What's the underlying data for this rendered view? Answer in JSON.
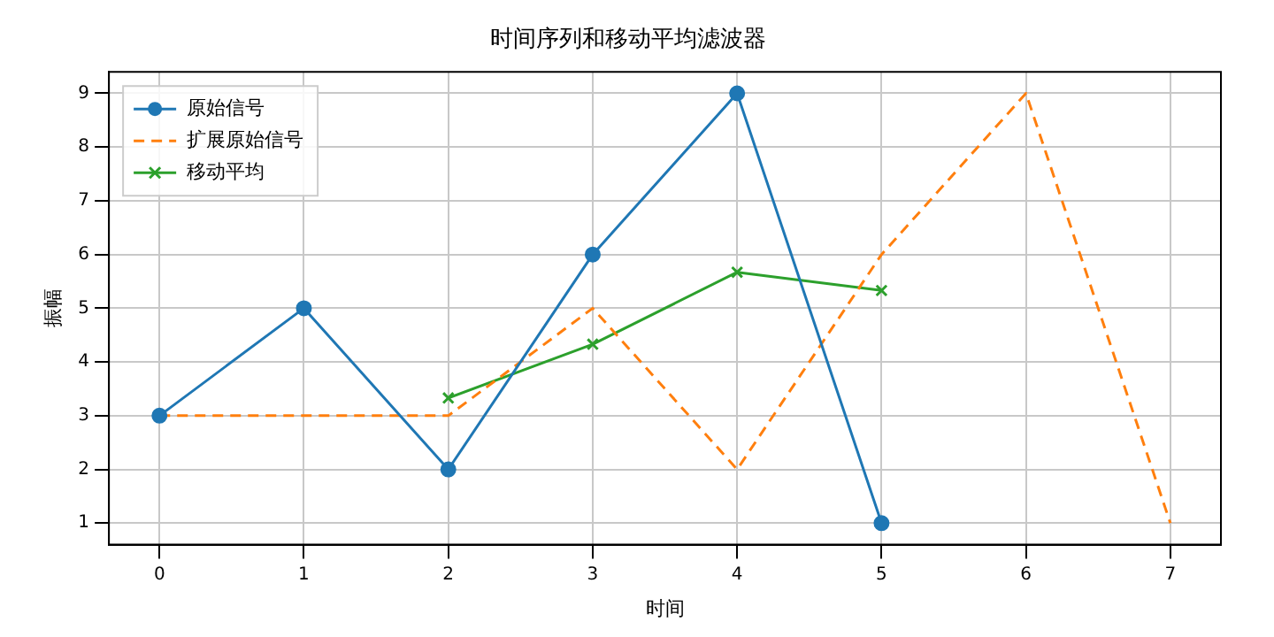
{
  "chart_data": {
    "type": "line",
    "title": "时间序列和移动平均滤波器",
    "xlabel": "时间",
    "ylabel": "振幅",
    "xlim": [
      -0.35,
      7.35
    ],
    "xticks": [
      0,
      1,
      2,
      3,
      4,
      5,
      6,
      7
    ],
    "ylim": [
      0.6,
      9.4
    ],
    "yticks": [
      1,
      2,
      3,
      4,
      5,
      6,
      7,
      8,
      9
    ],
    "grid": true,
    "legend": "top left",
    "series": [
      {
        "name": "原始信号",
        "color": "#1f77b4",
        "x": [
          0,
          1,
          2,
          3,
          4,
          5
        ],
        "values": [
          3,
          5,
          2,
          6,
          9,
          1
        ],
        "marker": "circle",
        "line_style": "solid"
      },
      {
        "name": "扩展原始信号",
        "color": "#ff7f0e",
        "x": [
          0,
          1,
          2,
          3,
          4,
          5,
          6,
          7
        ],
        "values": [
          3,
          3,
          3,
          5,
          2,
          6,
          9,
          1
        ],
        "marker": "none",
        "line_style": "dashed"
      },
      {
        "name": "移动平均",
        "color": "#2ca02c",
        "x": [
          2,
          3,
          4,
          5
        ],
        "values": [
          3.33,
          4.33,
          5.67,
          5.33
        ],
        "marker": "cross",
        "line_style": "solid"
      }
    ]
  }
}
